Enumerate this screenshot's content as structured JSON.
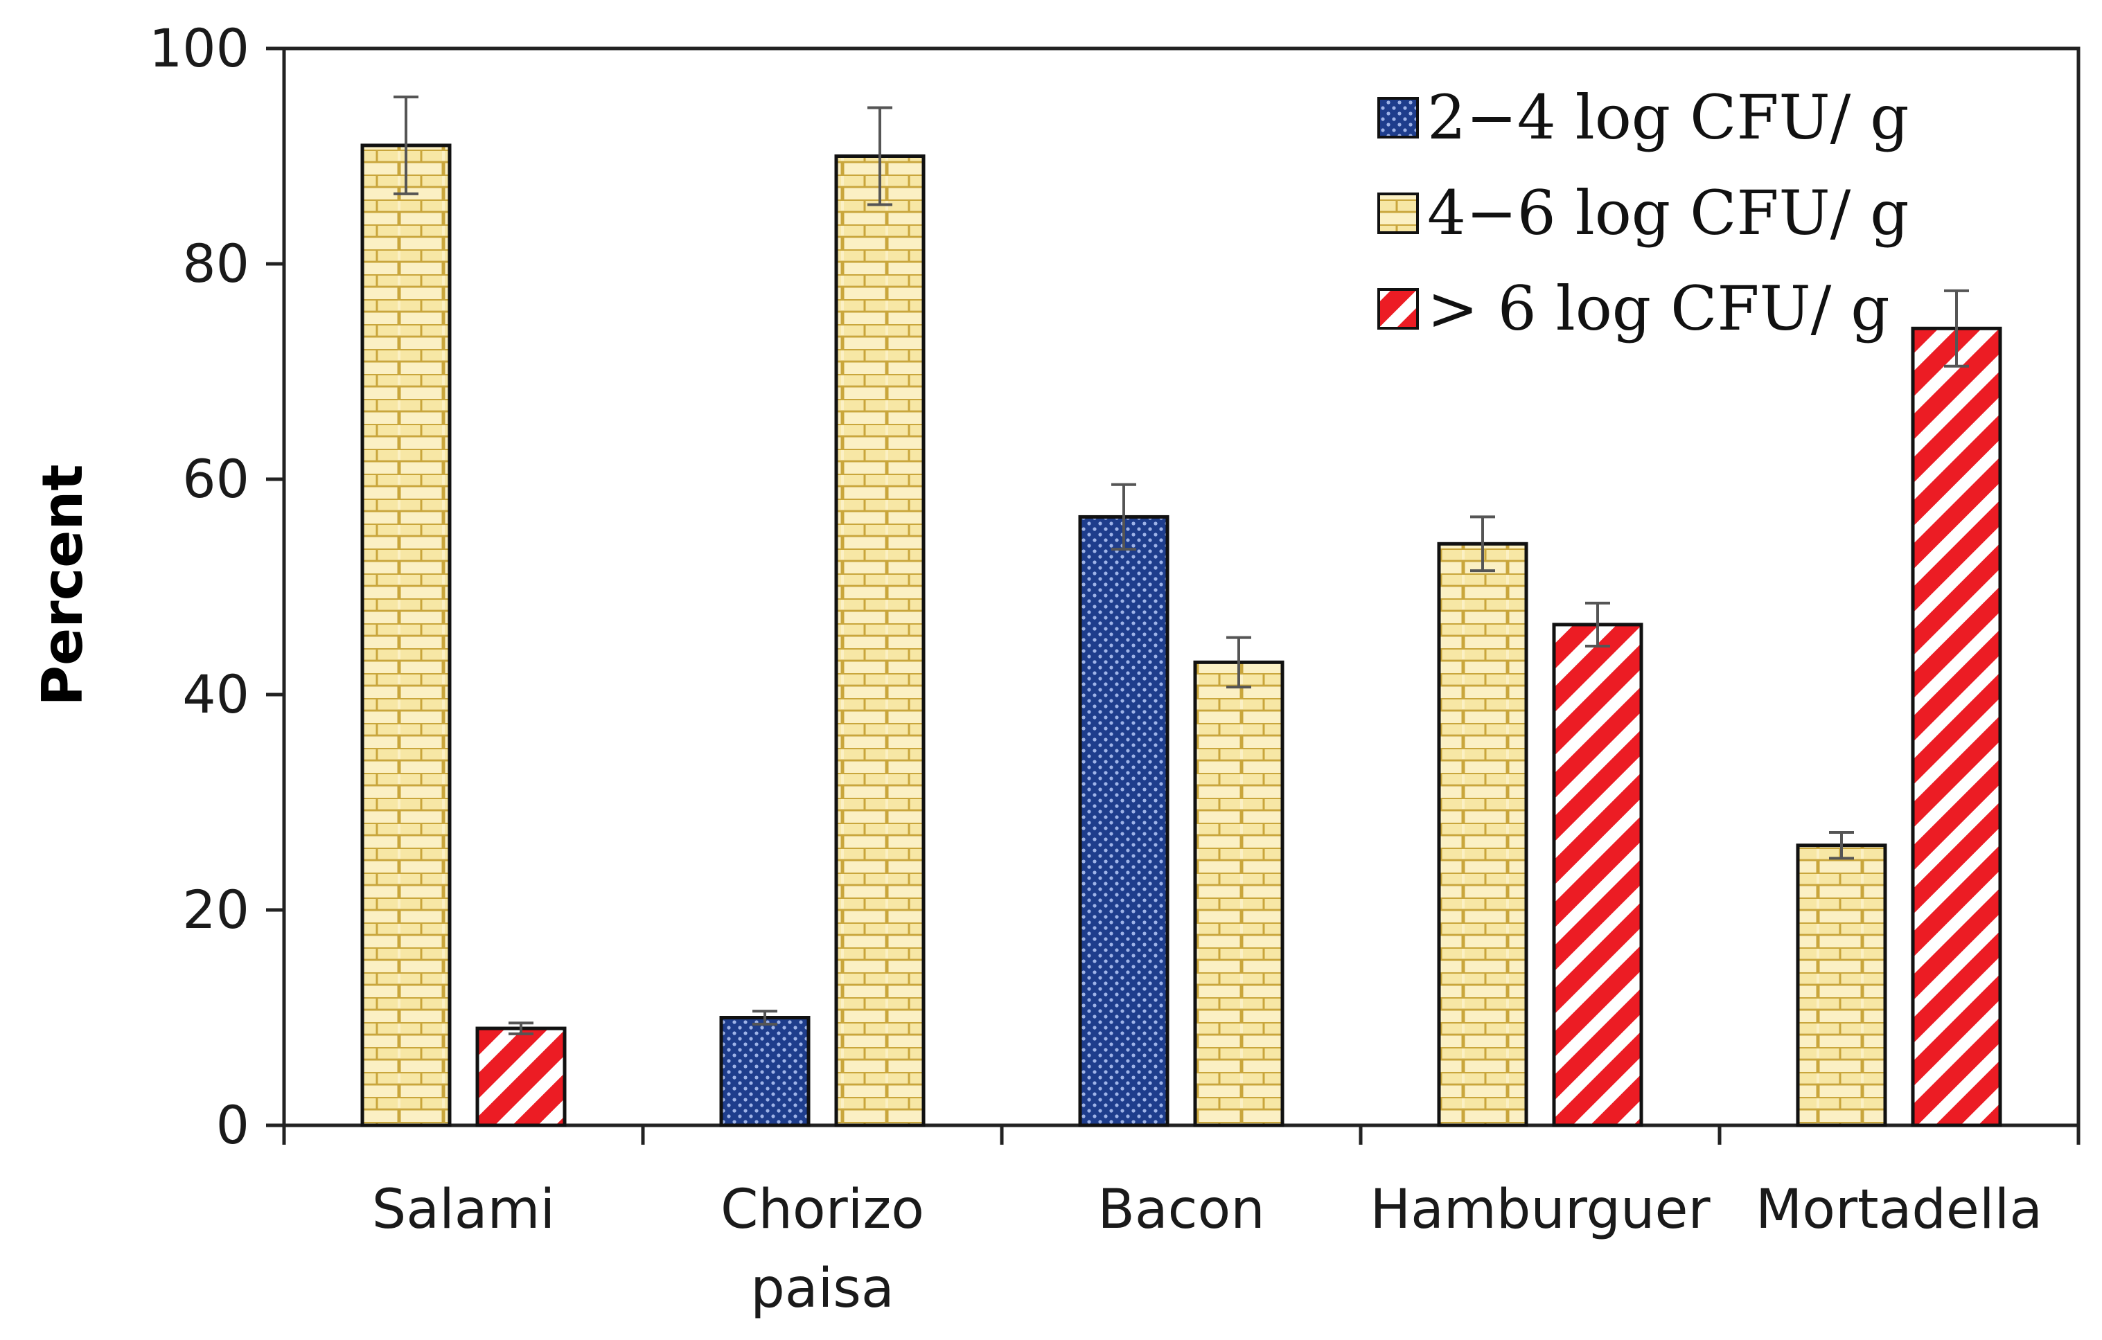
{
  "chart_data": {
    "type": "bar",
    "title": "",
    "xlabel": "",
    "ylabel": "Percent",
    "ylim": [
      0,
      100
    ],
    "yticks": [
      "0",
      "20",
      "40",
      "60",
      "80",
      "100"
    ],
    "categories": [
      {
        "line1": "Salami",
        "line2": ""
      },
      {
        "line1": "Chorizo",
        "line2": "paisa"
      },
      {
        "line1": "Bacon",
        "line2": ""
      },
      {
        "line1": "Hamburguer",
        "line2": ""
      },
      {
        "line1": "Mortadella",
        "line2": ""
      }
    ],
    "series": [
      {
        "name": "2−4 log CFU/ g",
        "pattern": "dots",
        "color": "#1f3f8f",
        "values": [
          null,
          10,
          56.5,
          null,
          null
        ],
        "errors": [
          null,
          0.6,
          3,
          null,
          null
        ]
      },
      {
        "name": "4−6 log CFU/ g",
        "pattern": "bricks",
        "color": "#f2dc8a",
        "values": [
          91,
          90,
          43,
          54,
          26
        ],
        "errors": [
          null,
          null,
          null,
          null,
          null
        ]
      },
      {
        "name": "> 6 log CFU/ g",
        "pattern": "stripes",
        "color": "#e8202a",
        "values": [
          9,
          null,
          null,
          46.5,
          74
        ],
        "errors": [
          0.5,
          null,
          null,
          2,
          3.5
        ]
      }
    ],
    "errors_mid": [
      4.5,
      4.5,
      2.3,
      2.5,
      1.2
    ],
    "legend_position": "top-right",
    "grid": false
  }
}
